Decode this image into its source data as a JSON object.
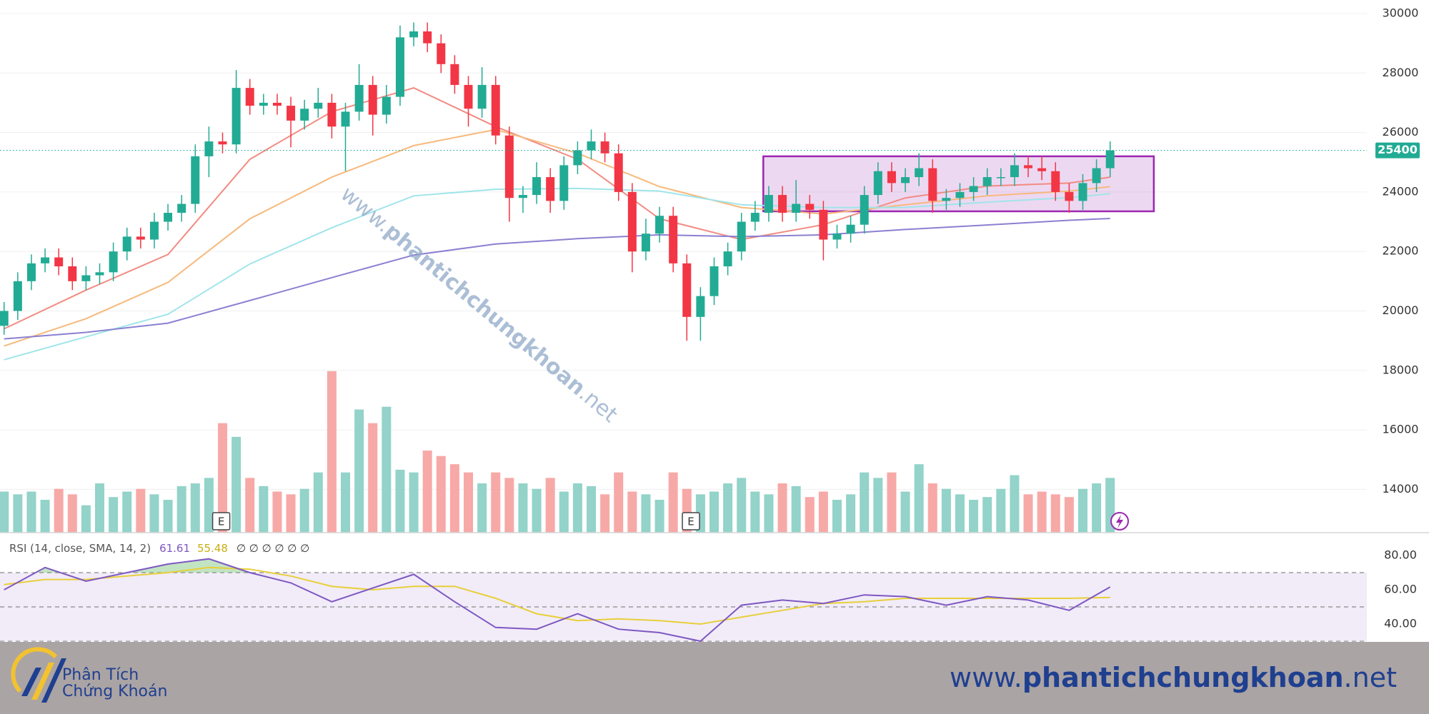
{
  "chart_data": [
    {
      "type": "candlestick",
      "xlim": [
        -0.3,
        99.8
      ],
      "ylim": [
        12545,
        30456
      ],
      "yticks": [
        14000,
        16000,
        18000,
        20000,
        22000,
        24000,
        26000,
        28000,
        30000
      ],
      "grid": true,
      "up_color": "#22ab94",
      "down_color": "#f23645",
      "volume_up_color": "#93d3c9",
      "volume_down_color": "#f7a9a7",
      "open": [
        19500,
        20000,
        21000,
        21600,
        21800,
        21500,
        21000,
        21200,
        21300,
        22000,
        22500,
        22400,
        23000,
        23300,
        23600,
        25200,
        25700,
        25600,
        27500,
        26900,
        27000,
        26900,
        26400,
        26800,
        27000,
        26200,
        26700,
        27600,
        26600,
        27200,
        29200,
        29400,
        29000,
        28300,
        27600,
        26800,
        27600,
        25900,
        23800,
        23900,
        24500,
        23700,
        24900,
        25400,
        25700,
        25300,
        24000,
        22000,
        22600,
        23200,
        21600,
        19800,
        20500,
        21500,
        22000,
        23000,
        23300,
        23900,
        23300,
        23600,
        23400,
        22400,
        22600,
        22900,
        23900,
        24700,
        24300,
        24500,
        24800,
        23700,
        23800,
        24000,
        24200,
        24500,
        24500,
        24900,
        24800,
        24700,
        24000,
        23700,
        24300,
        24800
      ],
      "high": [
        20300,
        21300,
        21900,
        22100,
        22100,
        21800,
        21500,
        21600,
        22300,
        22800,
        22800,
        23300,
        23600,
        23900,
        25600,
        26200,
        26000,
        28100,
        27800,
        27300,
        27300,
        27200,
        27100,
        27500,
        27300,
        27000,
        28300,
        27900,
        27600,
        29600,
        29700,
        29700,
        29300,
        28600,
        27900,
        28200,
        27900,
        26200,
        24200,
        25000,
        24800,
        25200,
        25700,
        26100,
        26000,
        25600,
        24300,
        23100,
        23500,
        23500,
        21900,
        20800,
        21800,
        22300,
        23300,
        23700,
        24200,
        24200,
        24400,
        23900,
        23700,
        22900,
        23200,
        24200,
        25000,
        25000,
        24800,
        25300,
        25100,
        24100,
        24300,
        24500,
        24800,
        24800,
        25300,
        25200,
        25200,
        25000,
        24300,
        24600,
        25100,
        25700
      ],
      "low": [
        19200,
        19700,
        20700,
        21300,
        21200,
        20700,
        20700,
        20900,
        21000,
        21700,
        22100,
        22100,
        22700,
        23000,
        23300,
        24500,
        25300,
        25300,
        26600,
        26600,
        26600,
        25500,
        26100,
        26500,
        25800,
        24700,
        26400,
        25900,
        26300,
        26900,
        28900,
        28700,
        28000,
        27300,
        26200,
        26500,
        25600,
        23000,
        23300,
        23600,
        23300,
        23400,
        24600,
        25100,
        25000,
        23700,
        21300,
        21700,
        22300,
        21300,
        19000,
        19000,
        20200,
        21200,
        21700,
        22700,
        23000,
        23000,
        23000,
        23100,
        21700,
        22100,
        22300,
        22600,
        23600,
        24000,
        24000,
        24200,
        23300,
        23400,
        23500,
        23700,
        23900,
        24200,
        24200,
        24500,
        24400,
        23700,
        23300,
        23400,
        24000,
        24500
      ],
      "close": [
        20000,
        21000,
        21600,
        21800,
        21500,
        21000,
        21200,
        21300,
        22000,
        22500,
        22400,
        23000,
        23300,
        23600,
        25200,
        25700,
        25600,
        27500,
        26900,
        27000,
        26900,
        26400,
        26800,
        27000,
        26200,
        26700,
        27600,
        26600,
        27200,
        29200,
        29400,
        29000,
        28300,
        27600,
        26800,
        27600,
        25900,
        23800,
        23900,
        24500,
        23700,
        24900,
        25400,
        25700,
        25300,
        24000,
        22000,
        22600,
        23200,
        21600,
        19800,
        20500,
        21500,
        22000,
        23000,
        23300,
        23900,
        23300,
        23600,
        23400,
        22400,
        22600,
        22900,
        23900,
        24700,
        24300,
        24500,
        24800,
        23700,
        23800,
        24000,
        24200,
        24500,
        24500,
        24900,
        24800,
        24700,
        24000,
        23700,
        24300,
        24800,
        25400
      ],
      "volume": [
        15,
        14,
        15,
        12,
        16,
        14,
        10,
        18,
        13,
        15,
        16,
        14,
        12,
        17,
        18,
        20,
        40,
        35,
        20,
        17,
        15,
        14,
        16,
        22,
        59,
        22,
        45,
        40,
        46,
        23,
        22,
        30,
        28,
        25,
        22,
        18,
        22,
        20,
        18,
        16,
        20,
        15,
        18,
        17,
        14,
        22,
        15,
        14,
        12,
        22,
        16,
        14,
        15,
        18,
        20,
        15,
        14,
        18,
        17,
        13,
        15,
        12,
        14,
        22,
        20,
        22,
        15,
        25,
        18,
        16,
        14,
        12,
        13,
        16,
        21,
        14,
        15,
        14,
        13,
        16,
        18,
        20
      ],
      "vlim": [
        0,
        60
      ],
      "moving_averages": [
        {
          "color": "#f28b82",
          "x": [
            0,
            6,
            12,
            18,
            24,
            30,
            36,
            42,
            48,
            54,
            60,
            66,
            72,
            78,
            81
          ],
          "values": [
            19400,
            20700,
            21900,
            25100,
            26700,
            27500,
            26200,
            25100,
            23100,
            22400,
            22900,
            23800,
            24200,
            24300,
            24500
          ]
        },
        {
          "color": "#f7b97c",
          "x": [
            0,
            6,
            12,
            18,
            24,
            30,
            36,
            42,
            48,
            54,
            60,
            66,
            72,
            78,
            81
          ],
          "values": [
            18820,
            19740,
            20960,
            23100,
            24500,
            25560,
            26100,
            25300,
            24180,
            23480,
            23260,
            23570,
            23870,
            24030,
            24180
          ]
        },
        {
          "color": "#9fe5ea",
          "x": [
            0,
            6,
            12,
            18,
            24,
            30,
            36,
            42,
            48,
            54,
            60,
            66,
            72,
            78,
            81
          ],
          "values": [
            18360,
            19130,
            19890,
            21580,
            22800,
            23870,
            24090,
            24120,
            24030,
            23570,
            23480,
            23480,
            23660,
            23810,
            23940
          ]
        },
        {
          "color": "#8b80d1",
          "x": [
            0,
            6,
            12,
            18,
            24,
            30,
            36,
            42,
            48,
            54,
            60,
            66,
            72,
            78,
            81
          ],
          "values": [
            19060,
            19280,
            19590,
            20350,
            21120,
            21880,
            22250,
            22430,
            22560,
            22500,
            22560,
            22740,
            22890,
            23050,
            23110
          ]
        }
      ],
      "box": {
        "x": [
          55.6,
          84.2
        ],
        "y": [
          23350,
          25200
        ],
        "color": "#9c27b0"
      },
      "events": [
        {
          "x": 15.9,
          "label": "E"
        },
        {
          "x": 50.3,
          "label": "E"
        }
      ],
      "price_line_color": "#22ab94"
    },
    {
      "type": "line",
      "title": "RSI (14, close, SMA, 14, 2)",
      "placeholders": "∅ ∅ ∅ ∅ ∅ ∅",
      "xlim": [
        -0.3,
        99.8
      ],
      "ylim": [
        29.6,
        93.3
      ],
      "yticks": [
        {
          "value": 40,
          "label": "40.00"
        },
        {
          "value": 60,
          "label": "60.00"
        },
        {
          "value": 80,
          "label": "80.00"
        }
      ],
      "band": [
        30,
        70
      ],
      "midline": 50,
      "band_color": "#ede7f6",
      "overbought_color": "#66bb6a",
      "x": [
        0,
        3,
        6,
        9,
        12,
        15,
        18,
        21,
        24,
        27,
        30,
        33,
        36,
        39,
        42,
        45,
        48,
        51,
        54,
        57,
        60,
        63,
        66,
        69,
        72,
        75,
        78,
        81
      ],
      "series": [
        {
          "color": "#7e57c2",
          "values": [
            60,
            73,
            65,
            70,
            75,
            78,
            70,
            64,
            53,
            61,
            69,
            53,
            38,
            37,
            46,
            37,
            35,
            30,
            51,
            54,
            52,
            57,
            56,
            51,
            56,
            54,
            48,
            61.61
          ]
        },
        {
          "color": "#e8cf3a",
          "values": [
            63,
            66,
            66,
            68,
            70,
            73,
            72,
            68,
            62,
            60,
            62,
            62,
            55,
            46,
            42,
            43,
            42,
            40,
            44,
            48,
            52,
            53,
            55,
            55,
            55,
            55,
            55,
            55.48
          ]
        }
      ]
    }
  ],
  "footer": {
    "logo": [
      "Phân Tích",
      "Chứng Khoán"
    ],
    "website": [
      "www.",
      "phantichchungkhoan",
      ".net"
    ]
  }
}
